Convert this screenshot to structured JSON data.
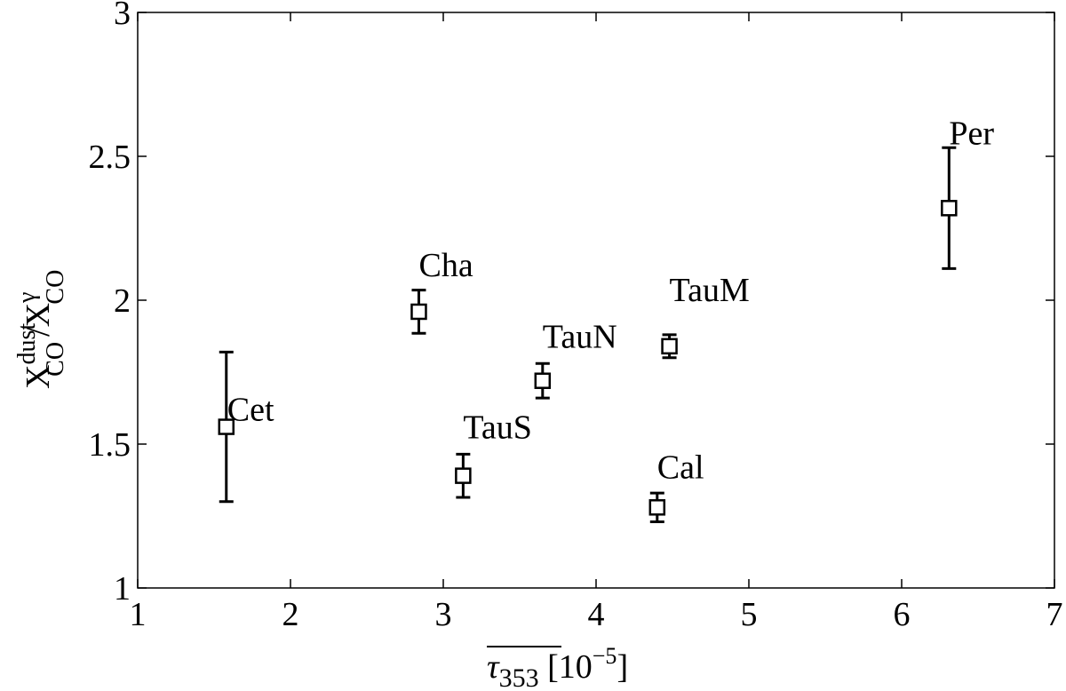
{
  "chart_data": {
    "type": "scatter",
    "labels": [
      "Cet",
      "Cha",
      "TauS",
      "TauN",
      "TauM",
      "Cal",
      "Per"
    ],
    "x": [
      1.58,
      2.84,
      3.13,
      3.65,
      4.48,
      4.4,
      6.31
    ],
    "values": [
      1.56,
      1.96,
      1.39,
      1.72,
      1.84,
      1.28,
      2.32
    ],
    "yerr": [
      0.26,
      0.075,
      0.075,
      0.06,
      0.04,
      0.05,
      0.21
    ],
    "color": "#000000",
    "xlim": [
      1,
      7
    ],
    "ylim": [
      1,
      3
    ],
    "xticks": [
      1,
      2,
      3,
      4,
      5,
      6,
      7
    ],
    "yticks": [
      1,
      1.5,
      2,
      2.5,
      3
    ],
    "xlabel": [
      "τ",
      "353",
      " [10",
      "−5",
      "]"
    ],
    "ylabel": [
      "X",
      "dust",
      "CO",
      "/X",
      "γ",
      "CO"
    ]
  }
}
